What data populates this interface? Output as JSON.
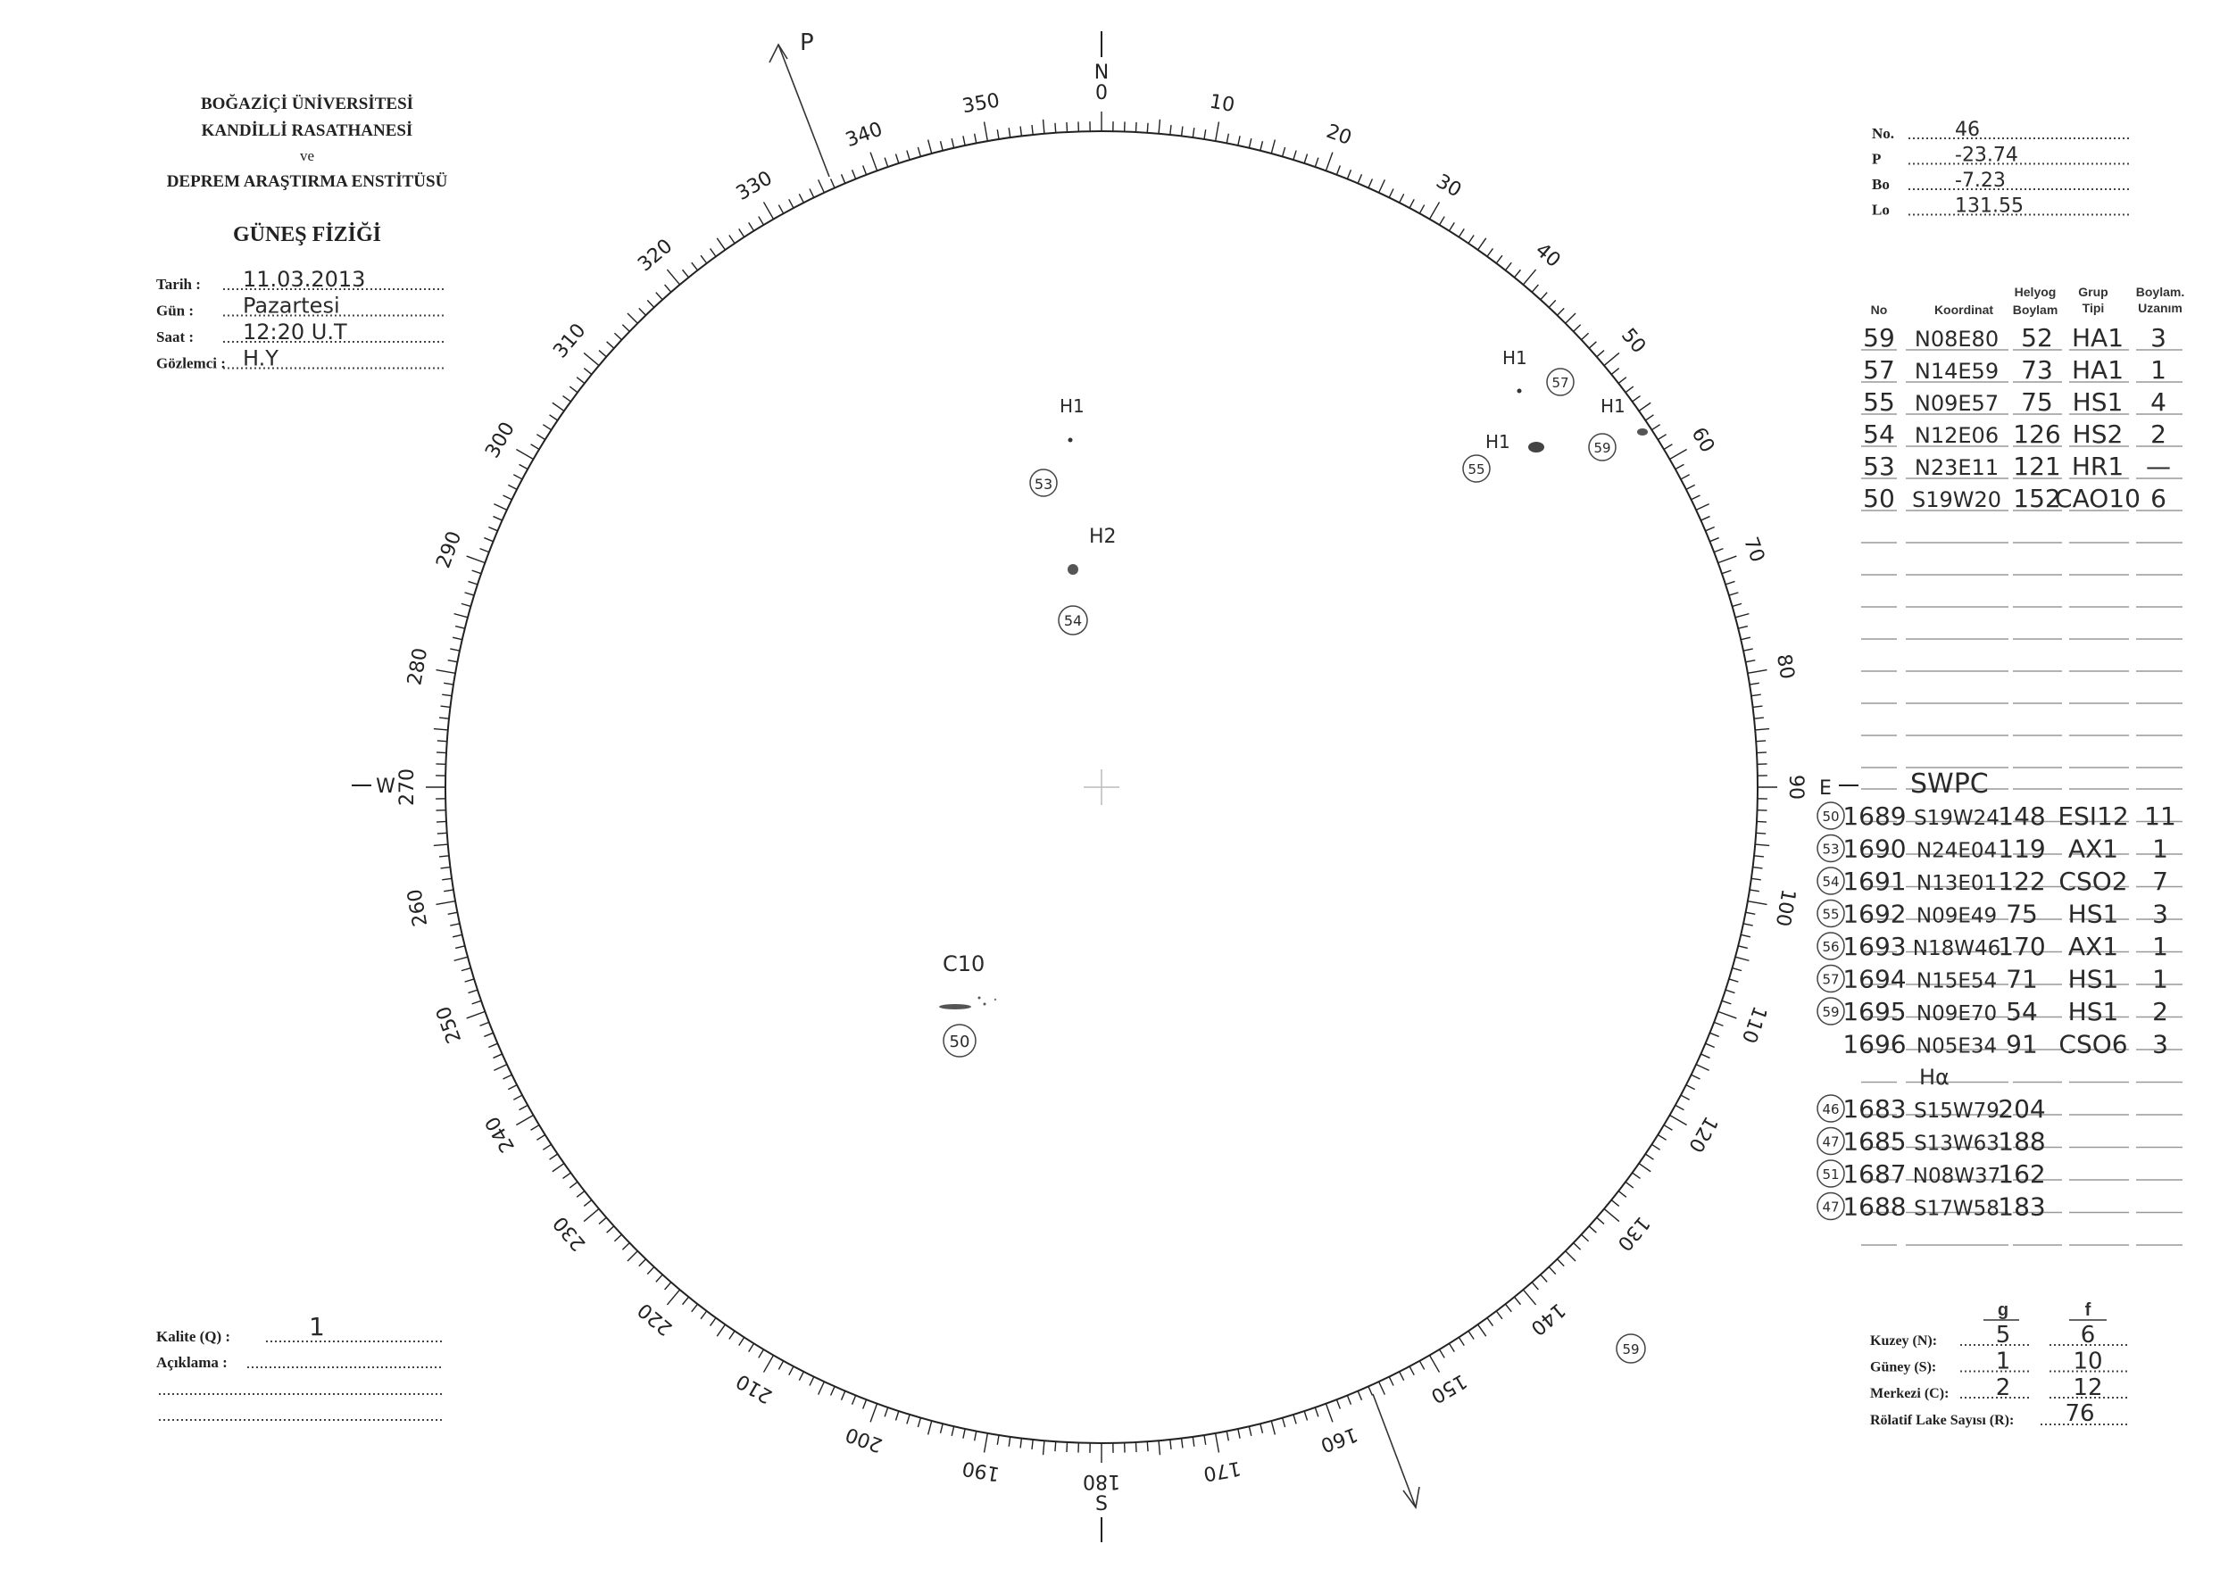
{
  "header": {
    "line1": "BOĞAZİÇİ ÜNİVERSİTESİ",
    "line2": "KANDİLLİ RASATHANESİ",
    "line3": "ve",
    "line4": "DEPREM ARAŞTIRMA ENSTİTÜSÜ",
    "title": "GÜNEŞ FİZİĞİ",
    "fields": [
      {
        "label": "Tarih :",
        "value": "11.03.2013"
      },
      {
        "label": "Gün :",
        "value": "Pazartesi"
      },
      {
        "label": "Saat :",
        "value": "12:20 U.T"
      },
      {
        "label": "Gözlemci :",
        "value": "H.Y"
      }
    ]
  },
  "params": [
    {
      "label": "No.",
      "value": "46"
    },
    {
      "label": "P",
      "value": "-23.74"
    },
    {
      "label": "Bo",
      "value": "-7.23"
    },
    {
      "label": "Lo",
      "value": "131.55"
    }
  ],
  "table": {
    "headers": {
      "no": "No",
      "koordinat": "Koordinat",
      "helyog_1": "Helyog",
      "helyog_2": "Boylam",
      "grup_1": "Grup",
      "grup_2": "Tipi",
      "uzanim_1": "Boylam.",
      "uzanim_2": "Uzanım"
    },
    "rows": [
      [
        "59",
        "N08E80",
        "52",
        "HA1",
        "3"
      ],
      [
        "57",
        "N14E59",
        "73",
        "HA1",
        "1"
      ],
      [
        "55",
        "N09E57",
        "75",
        "HS1",
        "4"
      ],
      [
        "54",
        "N12E06",
        "126",
        "HS2",
        "2"
      ],
      [
        "53",
        "N23E11",
        "121",
        "HR1",
        "—"
      ],
      [
        "50",
        "S19W20",
        "152",
        "CAO10",
        "6"
      ]
    ]
  },
  "swpc": {
    "title": "SWPC",
    "rows": [
      [
        "50",
        "1689",
        "S19W24",
        "148",
        "ESI12",
        "11"
      ],
      [
        "53",
        "1690",
        "N24E04",
        "119",
        "AX1",
        "1"
      ],
      [
        "54",
        "1691",
        "N13E01",
        "122",
        "CSO2",
        "7"
      ],
      [
        "55",
        "1692",
        "N09E49",
        "75",
        "HS1",
        "3"
      ],
      [
        "56",
        "1693",
        "N18W46",
        "170",
        "AX1",
        "1"
      ],
      [
        "57",
        "1694",
        "N15E54",
        "71",
        "HS1",
        "1"
      ],
      [
        "59",
        "1695",
        "N09E70",
        "54",
        "HS1",
        "2"
      ],
      [
        "",
        "1696",
        "N05E34",
        "91",
        "CSO6",
        "3"
      ]
    ],
    "subtitle": "Hα",
    "rows2": [
      [
        "46",
        "1683",
        "S15W79",
        "204"
      ],
      [
        "47",
        "1685",
        "S13W63",
        "188"
      ],
      [
        "51",
        "1687",
        "N08W37",
        "162"
      ],
      [
        "47",
        "1688",
        "S17W58",
        "183"
      ]
    ]
  },
  "disk": {
    "north": "N",
    "south": "S",
    "west": "W",
    "east": "E",
    "p_label": "P",
    "degree_labels": [
      0,
      10,
      20,
      30,
      40,
      50,
      60,
      70,
      80,
      90,
      100,
      110,
      120,
      130,
      140,
      150,
      160,
      170,
      180,
      190,
      200,
      210,
      220,
      230,
      240,
      250,
      260,
      270,
      280,
      290,
      300,
      310,
      320,
      330,
      340,
      350
    ],
    "groups": [
      {
        "type": "H1",
        "no": "53"
      },
      {
        "type": "H2",
        "no": "54"
      },
      {
        "type": "C10",
        "no": "50"
      },
      {
        "type": "H1",
        "no": "57"
      },
      {
        "type": "H1",
        "no": "55"
      },
      {
        "type": "H1",
        "no": "59"
      },
      {
        "no": "59"
      }
    ]
  },
  "quality": {
    "kalite_label": "Kalite (Q) :",
    "kalite_value": "1",
    "aciklama_label": "Açıklama :"
  },
  "counts": {
    "g": "g",
    "f": "f",
    "rows": [
      {
        "label": "Kuzey (N):",
        "g": "5",
        "f": "6"
      },
      {
        "label": "Güney (S):",
        "g": "1",
        "f": "10"
      },
      {
        "label": "Merkezi (C):",
        "g": "2",
        "f": "12"
      }
    ],
    "r_label": "Rölatif Lake Sayısı (R):",
    "r_value": "76"
  }
}
